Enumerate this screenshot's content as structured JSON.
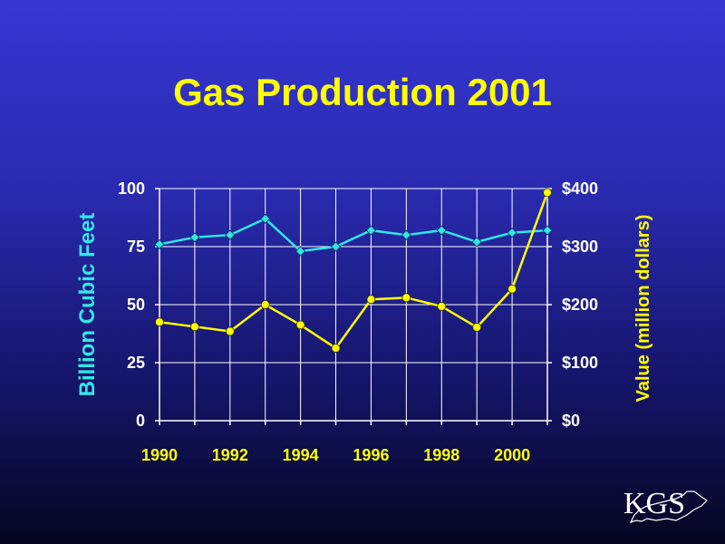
{
  "title": "Gas Production 2001",
  "chart_data": {
    "type": "line",
    "x": [
      1990,
      1991,
      1992,
      1993,
      1994,
      1995,
      1996,
      1997,
      1998,
      1999,
      2000,
      2001
    ],
    "x_ticks": [
      "1990",
      "1992",
      "1994",
      "1996",
      "1998",
      "2000"
    ],
    "xlim": [
      1990,
      2001
    ],
    "y_left_ticks": [
      "0",
      "25",
      "50",
      "75",
      "100"
    ],
    "y_right_ticks": [
      "$0",
      "$100",
      "$200",
      "$300",
      "$400"
    ],
    "ylim_left": [
      0,
      100
    ],
    "ylim_right": [
      0,
      400
    ],
    "ylabel_left": "Billion Cubic Feet",
    "ylabel_right": "Value (million dollars)",
    "grid": true,
    "series": [
      {
        "axis": "left",
        "color": "#33e6e6",
        "marker": "diamond",
        "values": [
          76,
          79,
          80,
          87,
          73,
          75,
          82,
          80,
          82,
          77,
          81,
          82
        ]
      },
      {
        "axis": "right",
        "color": "#ffff00",
        "marker": "circle",
        "values": [
          170,
          162,
          154,
          200,
          165,
          125,
          209,
          212,
          197,
          161,
          227,
          393
        ]
      }
    ]
  },
  "logo": {
    "text": "KGS"
  }
}
